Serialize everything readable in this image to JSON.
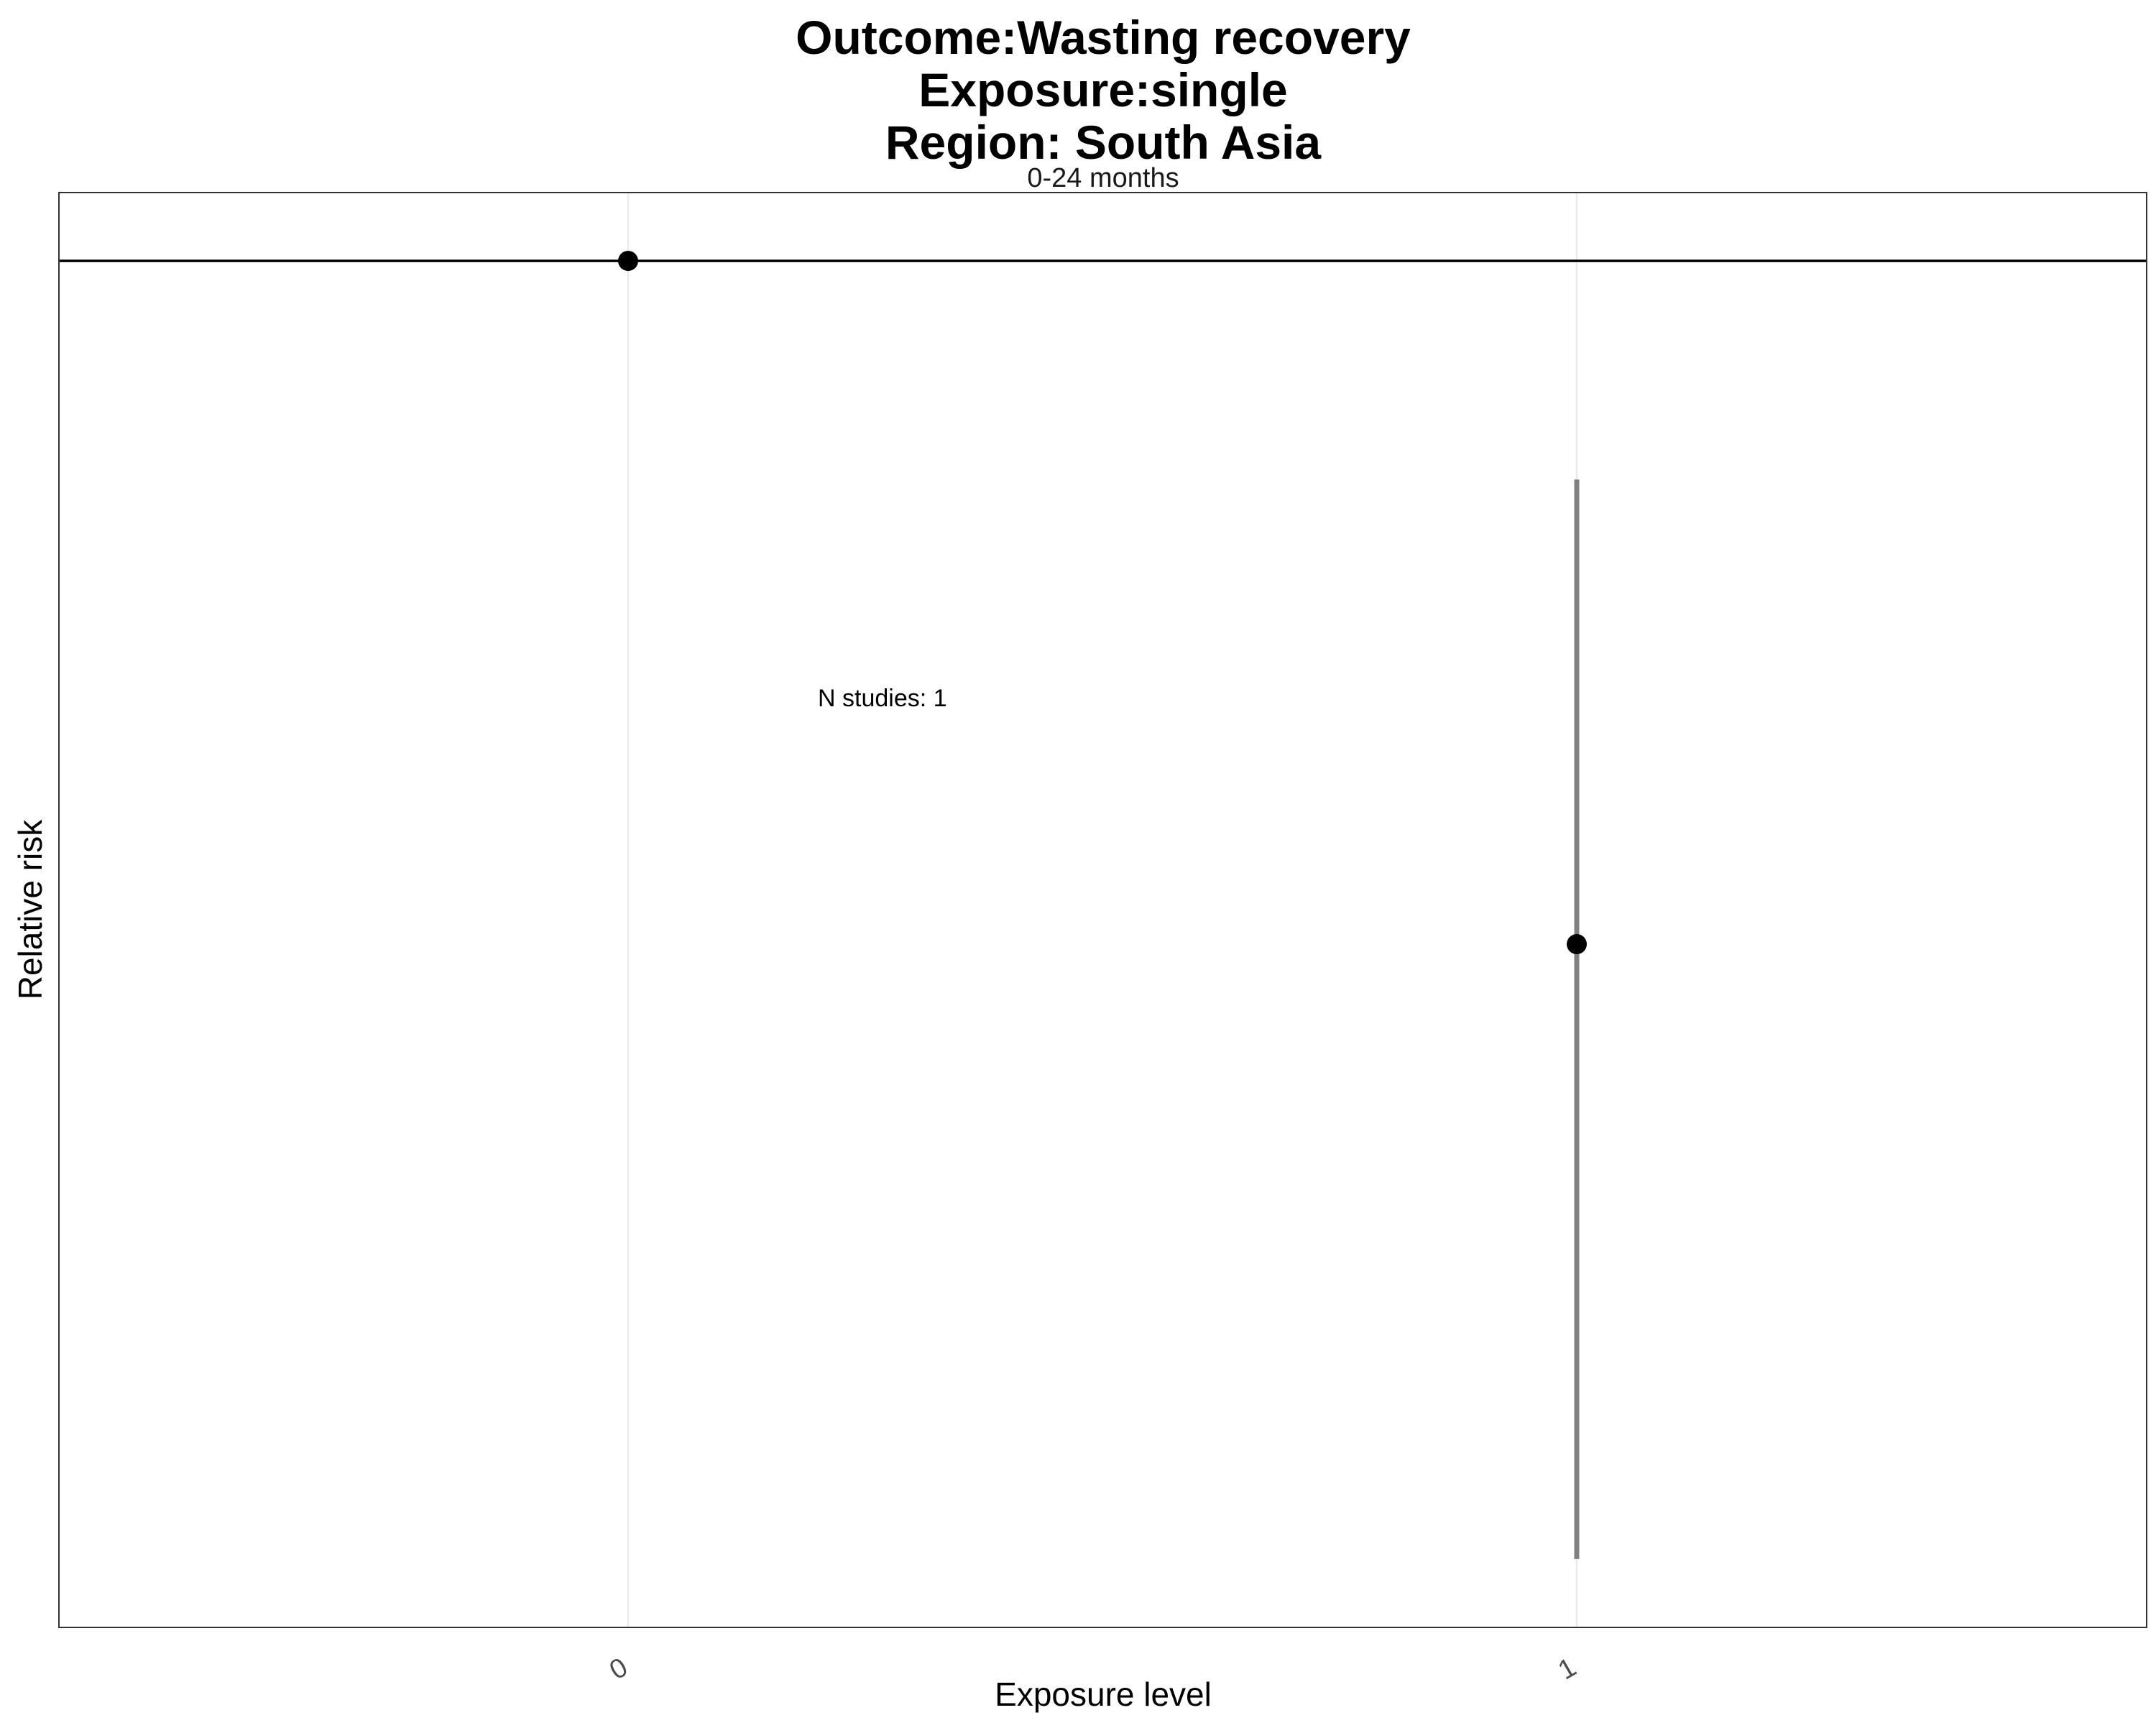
{
  "chart_data": {
    "type": "scatter",
    "title_lines": [
      "Outcome:Wasting recovery",
      "Exposure:single",
      "Region: South Asia"
    ],
    "facet_label": "0-24 months",
    "xlabel": "Exposure level",
    "ylabel": "Relative risk",
    "categories": [
      "0",
      "1"
    ],
    "points": [
      {
        "x": "0",
        "y": 1.0,
        "ci_lower": null,
        "ci_upper": null
      },
      {
        "x": "1",
        "y": 0.5,
        "ci_lower": 0.05,
        "ci_upper": 0.84
      }
    ],
    "ylim": [
      0.0,
      1.05
    ],
    "reference_line_y": 1.0,
    "y_ticks_shown": false,
    "annotation": "N studies: 1",
    "grid": true,
    "legend": "none",
    "colors": {
      "point": "#000000",
      "errorbar": "#7f7f7f",
      "reference_line": "#000000",
      "grid": "#ebebeb",
      "panel_border": "#333333"
    }
  }
}
